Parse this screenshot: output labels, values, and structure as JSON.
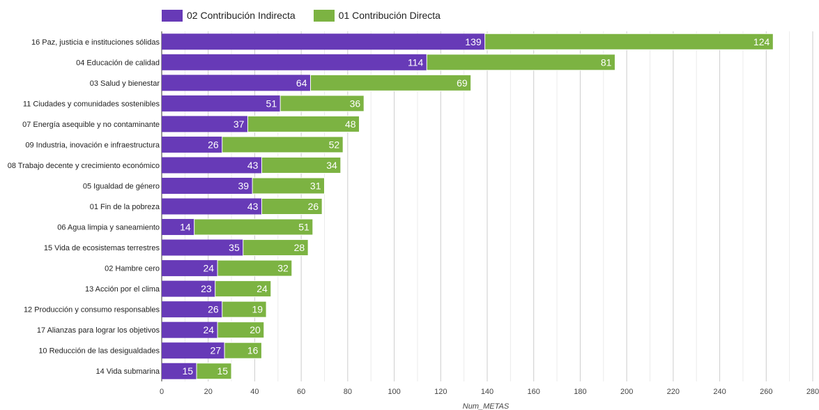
{
  "chart_data": {
    "type": "bar",
    "orientation": "horizontal",
    "stacked": true,
    "title": "",
    "xlabel": "Num_METAS",
    "ylabel": "",
    "xlim": [
      0,
      280
    ],
    "x_ticks": [
      0,
      20,
      40,
      60,
      80,
      100,
      120,
      140,
      160,
      180,
      200,
      220,
      240,
      260,
      280
    ],
    "grid": true,
    "legend_position": "top-left",
    "categories": [
      "16 Paz, justicia e instituciones sólidas",
      "04 Educación de calidad",
      "03 Salud y bienestar",
      "11 Ciudades y comunidades sostenibles",
      "07 Energía asequible y no contaminante",
      "09 Industria, inovación e infraestructura",
      "08 Trabajo decente y crecimiento económico",
      "05 Igualdad de género",
      "01 Fin de la pobreza",
      "06 Agua limpia y saneamiento",
      "15 Vida de ecosistemas terrestres",
      "02 Hambre cero",
      "13 Acción por el clima",
      "12 Producción y consumo responsables",
      "17 Alianzas para lograr los objetivos",
      "10 Reducción de las desigualdades",
      "14 Vida submarina"
    ],
    "series": [
      {
        "name": "02 Contribución Indirecta",
        "color": "#673ab7",
        "values": [
          139,
          114,
          64,
          51,
          37,
          26,
          43,
          39,
          43,
          14,
          35,
          24,
          23,
          26,
          24,
          27,
          15
        ]
      },
      {
        "name": "01 Contribución Directa",
        "color": "#7cb342",
        "values": [
          124,
          81,
          69,
          36,
          48,
          52,
          34,
          31,
          26,
          51,
          28,
          32,
          24,
          19,
          20,
          16,
          15
        ]
      }
    ]
  }
}
